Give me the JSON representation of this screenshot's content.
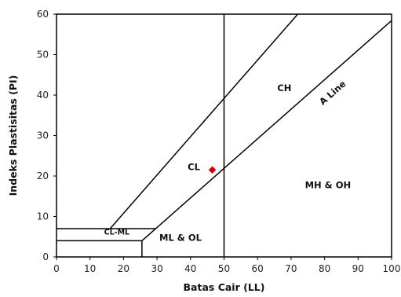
{
  "chart_data": {
    "type": "scatter",
    "xlabel": "Batas Cair (LL)",
    "ylabel": "Indeks Plastisitas (PI)",
    "xlim": [
      0,
      100
    ],
    "ylim": [
      0,
      60
    ],
    "x_ticks": [
      "0",
      "10",
      "20",
      "30",
      "40",
      "50",
      "60",
      "70",
      "80",
      "90",
      "100"
    ],
    "y_ticks": [
      "0",
      "10",
      "20",
      "30",
      "40",
      "50",
      "60"
    ],
    "grid": false,
    "legend": "none",
    "lines": [
      {
        "label": "A Line",
        "x": [
          25.5,
          100
        ],
        "y": [
          4,
          58.4
        ]
      },
      {
        "label": "",
        "x": [
          16,
          72
        ],
        "y": [
          7,
          60
        ]
      },
      {
        "label": "",
        "x": [
          50,
          50
        ],
        "y": [
          0,
          60
        ]
      },
      {
        "label": "",
        "x": [
          0,
          29.5
        ],
        "y": [
          7,
          7
        ]
      },
      {
        "label": "",
        "x": [
          0,
          25.5
        ],
        "y": [
          4,
          4
        ]
      },
      {
        "label": "",
        "x": [
          25.5,
          25.5
        ],
        "y": [
          0,
          4
        ]
      }
    ],
    "regions": [
      {
        "label": "CH",
        "x": 68,
        "y": 41
      },
      {
        "label": "CL",
        "x": 41,
        "y": 21.5
      },
      {
        "label": "MH & OH",
        "x": 81,
        "y": 17
      },
      {
        "label": "ML & OL",
        "x": 37,
        "y": 4
      },
      {
        "label": "CL-ML",
        "x": 18,
        "y": 5.5
      }
    ],
    "points": [
      {
        "x": 46.5,
        "y": 21.5,
        "color": "#cc0000"
      }
    ],
    "a_line_label": {
      "text": "A Line",
      "x": 83,
      "y": 40
    }
  }
}
